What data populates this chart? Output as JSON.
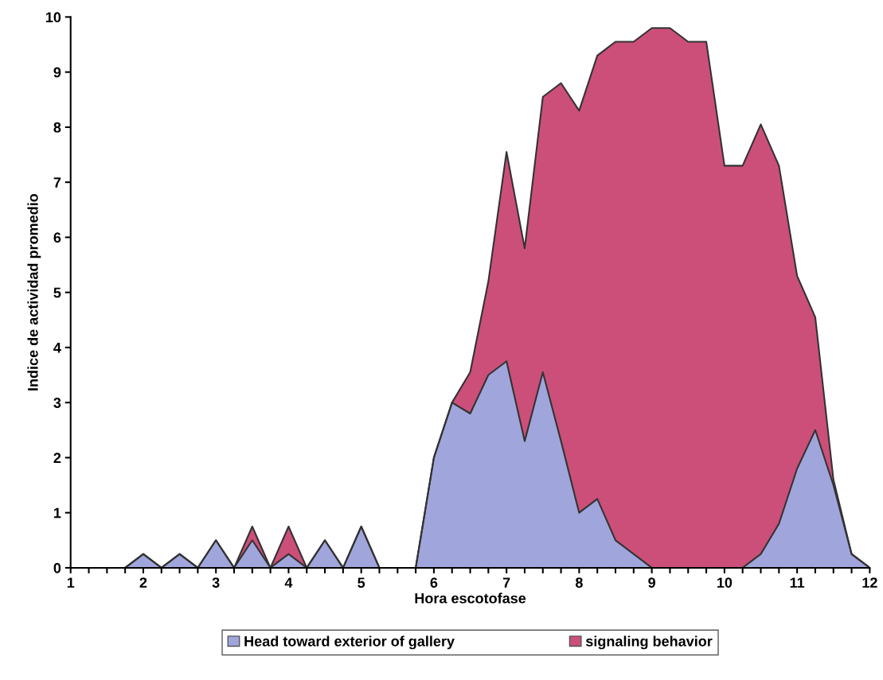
{
  "chart_data": {
    "type": "area",
    "stacked": true,
    "xlabel": "Hora escotofase",
    "ylabel": "Indice de actividad promedio",
    "x": [
      1,
      1.25,
      1.5,
      1.75,
      2,
      2.25,
      2.5,
      2.75,
      3,
      3.25,
      3.5,
      3.75,
      4,
      4.25,
      4.5,
      4.75,
      5,
      5.25,
      5.5,
      5.75,
      6,
      6.25,
      6.5,
      6.75,
      7,
      7.25,
      7.5,
      7.75,
      8,
      8.25,
      8.5,
      8.75,
      9,
      9.25,
      9.5,
      9.75,
      10,
      10.25,
      10.5,
      10.75,
      11,
      11.25,
      11.5,
      11.75,
      12
    ],
    "series": [
      {
        "name": "Head toward exterior of gallery",
        "color": "#a0a6dc",
        "values": [
          0,
          0,
          0,
          0,
          0.25,
          0,
          0.25,
          0,
          0.5,
          0,
          0.5,
          0,
          0.25,
          0,
          0.5,
          0,
          0.75,
          0,
          0,
          0,
          2.0,
          3.0,
          2.8,
          3.5,
          3.75,
          2.3,
          3.55,
          2.3,
          1.0,
          1.25,
          0.5,
          0.25,
          0,
          0,
          0,
          0,
          0,
          0,
          0.25,
          0.8,
          1.8,
          2.5,
          1.5,
          0.25,
          0
        ]
      },
      {
        "name": "signaling behavior",
        "color": "#cc4f7a",
        "values": [
          0,
          0,
          0,
          0,
          0,
          0,
          0,
          0,
          0,
          0,
          0.25,
          0,
          0.5,
          0,
          0,
          0,
          0,
          0,
          0,
          0,
          0,
          0,
          0.75,
          1.7,
          3.8,
          3.5,
          5.0,
          6.5,
          7.3,
          8.05,
          9.05,
          9.3,
          9.8,
          9.8,
          9.55,
          9.55,
          7.3,
          7.3,
          7.8,
          6.5,
          3.5,
          2.05,
          0.1,
          0,
          0
        ]
      }
    ],
    "xlim": [
      1,
      12
    ],
    "xticks": [
      1,
      {
        "value": 1.25,
        "label": null
      },
      {
        "value": 1.5,
        "label": null
      },
      {
        "value": 1.75,
        "label": null
      },
      2,
      {
        "value": 2.25,
        "label": null
      },
      {
        "value": 2.5,
        "label": null
      },
      {
        "value": 2.75,
        "label": null
      },
      3,
      {
        "value": 3.25,
        "label": null
      },
      {
        "value": 3.5,
        "label": null
      },
      {
        "value": 3.75,
        "label": null
      },
      4,
      {
        "value": 4.25,
        "label": null
      },
      {
        "value": 4.5,
        "label": null
      },
      {
        "value": 4.75,
        "label": null
      },
      5,
      {
        "value": 5.25,
        "label": null
      },
      {
        "value": 5.5,
        "label": null
      },
      {
        "value": 5.75,
        "label": null
      },
      6,
      {
        "value": 6.25,
        "label": null
      },
      {
        "value": 6.5,
        "label": null
      },
      {
        "value": 6.75,
        "label": null
      },
      7,
      {
        "value": 7.25,
        "label": null
      },
      {
        "value": 7.5,
        "label": null
      },
      {
        "value": 7.75,
        "label": null
      },
      8,
      {
        "value": 8.25,
        "label": null
      },
      {
        "value": 8.5,
        "label": null
      },
      {
        "value": 8.75,
        "label": null
      },
      9,
      {
        "value": 9.25,
        "label": null
      },
      {
        "value": 9.5,
        "label": null
      },
      {
        "value": 9.75,
        "label": null
      },
      10,
      {
        "value": 10.25,
        "label": null
      },
      {
        "value": 10.5,
        "label": null
      },
      {
        "value": 10.75,
        "label": null
      },
      11,
      {
        "value": 11.25,
        "label": null
      },
      {
        "value": 11.5,
        "label": null
      },
      {
        "value": 11.75,
        "label": null
      },
      12
    ],
    "ylim": [
      0,
      10
    ],
    "yticks": [
      0,
      1,
      2,
      3,
      4,
      5,
      6,
      7,
      8,
      9,
      10
    ],
    "grid": false,
    "legend": "bottom"
  }
}
